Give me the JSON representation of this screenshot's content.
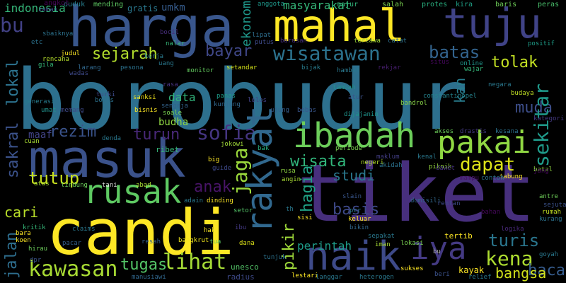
{
  "words": [
    {
      "text": "borobudur",
      "color": "#2d708e"
    },
    {
      "text": "tiket",
      "color": "#472f7d"
    },
    {
      "text": "candi",
      "color": "#fde725"
    },
    {
      "text": "harga",
      "color": "#39568c"
    },
    {
      "text": "masuk",
      "color": "#3b528b"
    },
    {
      "text": "mahal",
      "color": "#fde725"
    },
    {
      "text": "tuju",
      "color": "#404387"
    },
    {
      "text": "rakyat",
      "color": "#31688e"
    },
    {
      "text": "naik",
      "color": "#3e4a89"
    },
    {
      "text": "ibadah",
      "color": "#6ccd5a"
    },
    {
      "text": "pakai",
      "color": "#90d743"
    },
    {
      "text": "rusak",
      "color": "#5ec962"
    },
    {
      "text": "iya",
      "color": "#443a83"
    },
    {
      "text": "wisatawan",
      "color": "#2c728e"
    },
    {
      "text": "sekitar",
      "color": "#1f9a8a"
    },
    {
      "text": "sejarah",
      "color": "#b2dd2d"
    },
    {
      "text": "batas",
      "color": "#33638d"
    },
    {
      "text": "tolak",
      "color": "#c2df23"
    },
    {
      "text": "kena",
      "color": "#addc30"
    },
    {
      "text": "turis",
      "color": "#2a768e"
    },
    {
      "text": "lihat",
      "color": "#a5db36"
    },
    {
      "text": "kawasan",
      "color": "#a8db34"
    },
    {
      "text": "sofia",
      "color": "#453581"
    },
    {
      "text": "turun",
      "color": "#482878"
    },
    {
      "text": "jaga",
      "color": "#9bd93c"
    },
    {
      "text": "dapat",
      "color": "#dde318"
    },
    {
      "text": "tutup",
      "color": "#c8e020"
    },
    {
      "text": "pikir",
      "color": "#9fda3a"
    },
    {
      "text": "hagia",
      "color": "#20a386"
    },
    {
      "text": "perintah",
      "color": "#1e9c89"
    },
    {
      "text": "wisata",
      "color": "#31b57b"
    },
    {
      "text": "basis",
      "color": "#3e4989"
    },
    {
      "text": "studi",
      "color": "#2a788e"
    },
    {
      "text": "tugas",
      "color": "#54c568"
    },
    {
      "text": "rezim",
      "color": "#3a538b"
    },
    {
      "text": "bayar",
      "color": "#3f4788"
    },
    {
      "text": "sakral",
      "color": "#3b528b"
    },
    {
      "text": "lokal",
      "color": "#2c728e"
    },
    {
      "text": "jalan",
      "color": "#2e6e8e"
    },
    {
      "text": "segitu",
      "color": "#d8e219"
    },
    {
      "text": "cari",
      "color": "#b8de29"
    },
    {
      "text": "anak",
      "color": "#481467"
    },
    {
      "text": "bu",
      "color": "#424186"
    },
    {
      "text": "muda",
      "color": "#3d4e8a"
    },
    {
      "text": "baca",
      "color": "#365c8d"
    },
    {
      "text": "kan",
      "color": "#287d8e"
    },
    {
      "text": "bangsa",
      "color": "#d2e21b"
    },
    {
      "text": "ekonomi",
      "color": "#1f988b"
    },
    {
      "text": "budha",
      "color": "#90d743"
    },
    {
      "text": "data",
      "color": "#31b57b"
    },
    {
      "text": "indonesia",
      "color": "#35b779"
    },
    {
      "text": "masyarakat",
      "color": "#35b779"
    },
    {
      "text": "umkm",
      "color": "#365c8d"
    },
    {
      "text": "gratis",
      "color": "#2a788e"
    },
    {
      "text": "duduk",
      "color": "#277f8e"
    },
    {
      "text": "mending",
      "color": "#5ec962"
    },
    {
      "text": "majur",
      "color": "#31b57b"
    },
    {
      "text": "salah",
      "color": "#7ad151"
    },
    {
      "text": "protes",
      "color": "#29af7f"
    },
    {
      "text": "kira",
      "color": "#1fa187"
    },
    {
      "text": "baris",
      "color": "#6ece58"
    },
    {
      "text": "peras",
      "color": "#4ac16d"
    },
    {
      "text": "angkot",
      "color": "#440154"
    },
    {
      "text": "zaman",
      "color": "#3e4a89"
    },
    {
      "text": "sbaiknya",
      "color": "#2c728e"
    },
    {
      "text": "etc",
      "color": "#2c728e"
    },
    {
      "text": "judul",
      "color": "#fde725"
    },
    {
      "text": "rencana",
      "color": "#b5de2b"
    },
    {
      "text": "gila",
      "color": "#35b779"
    },
    {
      "text": "wadas",
      "color": "#3e4989"
    },
    {
      "text": "larang",
      "color": "#31688e"
    },
    {
      "text": "pesona",
      "color": "#2c728e"
    },
    {
      "text": "uang",
      "color": "#2a788e"
    },
    {
      "text": "monitor",
      "color": "#63cb5f"
    },
    {
      "text": "setandar",
      "color": "#d5e21a"
    },
    {
      "text": "barusan",
      "color": "#46307e"
    },
    {
      "text": "tertawa",
      "color": "#a0da39"
    },
    {
      "text": "catat",
      "color": "#2d718e"
    },
    {
      "text": "bijak",
      "color": "#287c8e"
    },
    {
      "text": "hambat",
      "color": "#2a788e"
    },
    {
      "text": "rekjar",
      "color": "#481f70"
    },
    {
      "text": "situs",
      "color": "#46085c"
    },
    {
      "text": "online",
      "color": "#1f968b"
    },
    {
      "text": "wajar",
      "color": "#35b779"
    },
    {
      "text": "tambah",
      "color": "#21918c"
    },
    {
      "text": "positif",
      "color": "#1f9e89"
    },
    {
      "text": "budaya",
      "color": "#c0df25"
    },
    {
      "text": "kategori",
      "color": "#443983"
    },
    {
      "text": "rasa",
      "color": "#46327e"
    },
    {
      "text": "sanksi",
      "color": "#f4e61e"
    },
    {
      "text": "sengaja",
      "color": "#33638d"
    },
    {
      "text": "soale",
      "color": "#7ad151"
    },
    {
      "text": "panas",
      "color": "#1e9c89"
    },
    {
      "text": "kunjung",
      "color": "#31688e"
    },
    {
      "text": "lolos",
      "color": "#424186"
    },
    {
      "text": "ujung",
      "color": "#355f8d"
    },
    {
      "text": "bebas",
      "color": "#39568c"
    },
    {
      "text": "bandrol",
      "color": "#89d548"
    },
    {
      "text": "atur",
      "color": "#3b528b"
    },
    {
      "text": "dijajanin",
      "color": "#1f948c"
    },
    {
      "text": "constantinopel",
      "color": "#25848e"
    },
    {
      "text": "negara",
      "color": "#2a788e"
    },
    {
      "text": "boros",
      "color": "#2c728e"
    },
    {
      "text": "turki",
      "color": "#3e4a89"
    },
    {
      "text": "generasi",
      "color": "#287c8e"
    },
    {
      "text": "memang",
      "color": "#3e4a89"
    },
    {
      "text": "umat",
      "color": "#21918c"
    },
    {
      "text": "bisnis",
      "color": "#fde725"
    },
    {
      "text": "cuan",
      "color": "#a8db34"
    },
    {
      "text": "maaf",
      "color": "#414487"
    },
    {
      "text": "denda",
      "color": "#2a788e"
    },
    {
      "text": "kerja",
      "color": "#297a8e"
    },
    {
      "text": "nalar",
      "color": "#35b779"
    },
    {
      "text": "bocil",
      "color": "#472d7b"
    },
    {
      "text": "lipat",
      "color": "#2e6e8e"
    },
    {
      "text": "putus",
      "color": "#3e4a89"
    },
    {
      "text": "anggota",
      "color": "#1f988b"
    },
    {
      "text": "akses",
      "color": "#6ccd5a"
    },
    {
      "text": "drastis",
      "color": "#443a83"
    },
    {
      "text": "kesana",
      "color": "#2c728e"
    },
    {
      "text": "bak",
      "color": "#29af7f"
    },
    {
      "text": "periode",
      "color": "#7ad151"
    },
    {
      "text": "jokowi",
      "color": "#a0da39"
    },
    {
      "text": "big",
      "color": "#fde725"
    },
    {
      "text": "ribet",
      "color": "#35b779"
    },
    {
      "text": "guide",
      "color": "#3e4989"
    },
    {
      "text": "rusa",
      "color": "#90d743"
    },
    {
      "text": "negeri",
      "color": "#b5de2b"
    },
    {
      "text": "maklum",
      "color": "#433e85"
    },
    {
      "text": "akidah",
      "color": "#2c728e"
    },
    {
      "text": "kenal",
      "color": "#2a788e"
    },
    {
      "text": "piknik",
      "color": "#95d840"
    },
    {
      "text": "dawet",
      "color": "#46307e"
    },
    {
      "text": "mampu",
      "color": "#471365"
    },
    {
      "text": "tabung",
      "color": "#fde725"
    },
    {
      "text": "batal",
      "color": "#90d743"
    },
    {
      "text": "jang",
      "color": "#46085c"
    },
    {
      "text": "contoh",
      "color": "#2c728e"
    },
    {
      "text": "angin",
      "color": "#a8db34"
    },
    {
      "text": "atas",
      "color": "#a8db34"
    },
    {
      "text": "lindung",
      "color": "#6ccd5a"
    },
    {
      "text": "tani",
      "color": "#ddd"
    },
    {
      "text": "abad",
      "color": "#a8db34"
    },
    {
      "text": "adain",
      "color": "#2a788e"
    },
    {
      "text": "dinding",
      "color": "#fde725"
    },
    {
      "text": "setor",
      "color": "#54c568"
    },
    {
      "text": "slain",
      "color": "#39568c"
    },
    {
      "text": "keluar",
      "color": "#fde725"
    },
    {
      "text": "pcr",
      "color": "#2a788e"
    },
    {
      "text": "th",
      "color": "#2a788e"
    },
    {
      "text": "sisi",
      "color": "#fde725"
    },
    {
      "text": "bikin",
      "color": "#31688e"
    },
    {
      "text": "domisili",
      "color": "#31688e"
    },
    {
      "text": "rentan",
      "color": "#3e4a89"
    },
    {
      "text": "bahan",
      "color": "#46085c"
    },
    {
      "text": "antre",
      "color": "#6ece58"
    },
    {
      "text": "sejuta",
      "color": "#3b528b"
    },
    {
      "text": "rumah",
      "color": "#c2df23"
    },
    {
      "text": "kurang",
      "color": "#2c728e"
    },
    {
      "text": "kritik",
      "color": "#35b779"
    },
    {
      "text": "bara",
      "color": "#fde725"
    },
    {
      "text": "koen",
      "color": "#fde725"
    },
    {
      "text": "hirau",
      "color": "#6ccd5a"
    },
    {
      "text": "claims",
      "color": "#2a788e"
    },
    {
      "text": "pacar",
      "color": "#355f8d"
    },
    {
      "text": "resah",
      "color": "#355f8d"
    },
    {
      "text": "hak",
      "color": "#fde725"
    },
    {
      "text": "ibu",
      "color": "#443983"
    },
    {
      "text": "tua",
      "color": "#5ec962"
    },
    {
      "text": "dana",
      "color": "#dde318"
    },
    {
      "text": "bangkrut",
      "color": "#efe51c"
    },
    {
      "text": "tunjuk",
      "color": "#2c728e"
    },
    {
      "text": "sepakat",
      "color": "#2a788e"
    },
    {
      "text": "lokasi",
      "color": "#7ad151"
    },
    {
      "text": "iman",
      "color": "#a8db34"
    },
    {
      "text": "tertib",
      "color": "#fde725"
    },
    {
      "text": "logika",
      "color": "#482878"
    },
    {
      "text": "goyah",
      "color": "#2a788e"
    },
    {
      "text": "kayak",
      "color": "#fde725"
    },
    {
      "text": "sukses",
      "color": "#fde725"
    },
    {
      "text": "beri",
      "color": "#3b528b"
    },
    {
      "text": "relief",
      "color": "#2a788e"
    },
    {
      "text": "dpr",
      "color": "#3b528b"
    },
    {
      "text": "manusiawi",
      "color": "#31688e"
    },
    {
      "text": "unesco",
      "color": "#54c568"
    },
    {
      "text": "radius",
      "color": "#3e4a89"
    },
    {
      "text": "lestari",
      "color": "#fde725"
    },
    {
      "text": "langgar",
      "color": "#2a788e"
    },
    {
      "text": "heterogen",
      "color": "#2a788e"
    },
    {
      "text": "bu",
      "color": "#aaa"
    }
  ]
}
